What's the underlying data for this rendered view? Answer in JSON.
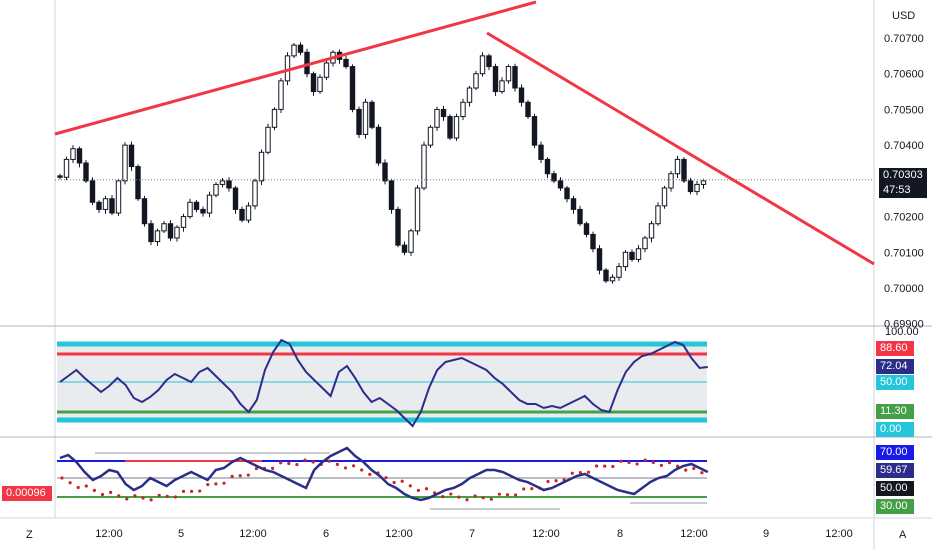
{
  "price_axis": {
    "currency": "USD",
    "labels": [
      "0.70700",
      "0.70600",
      "0.70500",
      "0.70400",
      "0.70300",
      "0.70200",
      "0.70100",
      "0.70000",
      "0.69900"
    ],
    "last_price": "0.70303",
    "countdown": "47:53"
  },
  "time_axis": {
    "labels": [
      "12:00",
      "5",
      "12:00",
      "6",
      "12:00",
      "7",
      "12:00",
      "8",
      "12:00",
      "9",
      "12:00"
    ]
  },
  "corner_left": "Z",
  "corner_right": "A",
  "indicator1": {
    "axis_top_label": "100.00",
    "tags": [
      {
        "label": "88.60",
        "color": "#f23645"
      },
      {
        "label": "72.04",
        "color": "#2a2e88"
      },
      {
        "label": "50.00",
        "color": "#26c6da"
      },
      {
        "label": "11.30",
        "color": "#43a047"
      },
      {
        "label": "0.00",
        "color": "#26c6da"
      }
    ]
  },
  "indicator2": {
    "left_value": "0.00096",
    "left_value_color": "#f23645",
    "tags": [
      {
        "label": "70.00",
        "color": "#1a1ae6"
      },
      {
        "label": "59.67",
        "color": "#2a2e88"
      },
      {
        "label": "50.00",
        "color": "#131722"
      },
      {
        "label": "30.00",
        "color": "#43a047"
      }
    ]
  },
  "colors": {
    "trendline": "#f23645",
    "candle": "#131722",
    "osc_line": "#2a2e88",
    "cyan": "#26c6da",
    "green": "#43a047",
    "dots": "#c62828"
  },
  "chart_data": {
    "type": "candlestick",
    "ylim": [
      0.699,
      0.7075
    ],
    "last": 0.70303,
    "close_series": [
      0.7031,
      0.7036,
      0.7039,
      0.7035,
      0.703,
      0.7024,
      0.7022,
      0.7025,
      0.7021,
      0.703,
      0.704,
      0.7034,
      0.7025,
      0.7018,
      0.7013,
      0.7016,
      0.7018,
      0.7014,
      0.7017,
      0.702,
      0.7024,
      0.7022,
      0.7021,
      0.7026,
      0.7029,
      0.703,
      0.7028,
      0.7022,
      0.7019,
      0.7023,
      0.703,
      0.7038,
      0.7045,
      0.705,
      0.7058,
      0.7065,
      0.7068,
      0.7066,
      0.706,
      0.7055,
      0.7059,
      0.7063,
      0.7066,
      0.7064,
      0.7062,
      0.705,
      0.7043,
      0.7052,
      0.7045,
      0.7035,
      0.703,
      0.7022,
      0.7012,
      0.701,
      0.7016,
      0.7028,
      0.704,
      0.7045,
      0.705,
      0.7048,
      0.7042,
      0.7048,
      0.7052,
      0.7056,
      0.706,
      0.7065,
      0.7062,
      0.7055,
      0.7058,
      0.7062,
      0.7056,
      0.7052,
      0.7048,
      0.704,
      0.7036,
      0.7032,
      0.703,
      0.7028,
      0.7025,
      0.7022,
      0.7018,
      0.7015,
      0.7011,
      0.7005,
      0.7002,
      0.7003,
      0.7006,
      0.701,
      0.7008,
      0.7011,
      0.7014,
      0.7018,
      0.7023,
      0.7028,
      0.7032,
      0.7036,
      0.703,
      0.7027,
      0.7029,
      0.703
    ]
  }
}
